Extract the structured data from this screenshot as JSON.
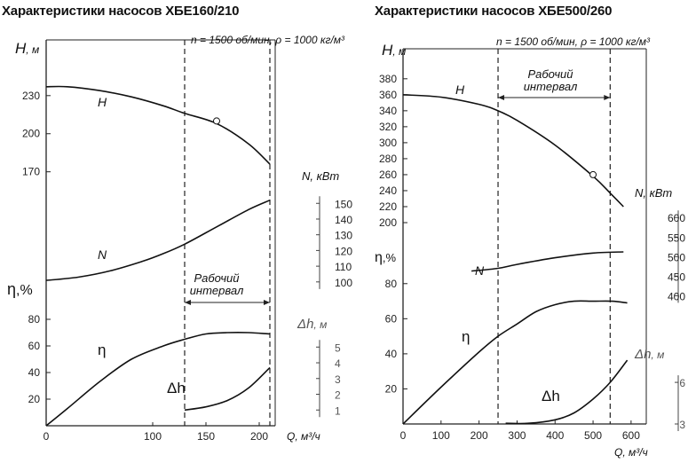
{
  "chart_data": [
    {
      "type": "line",
      "title": "Характеристики насосов ХБЕ160/210",
      "conditions": "n = 1500 об/мин, ρ = 1000 кг/м³",
      "xlabel": "Q, м³/ч",
      "x_ticks": [
        "0",
        "100",
        "150",
        "200"
      ],
      "xlim": [
        0,
        215
      ],
      "axes": {
        "H": {
          "label": "H, м",
          "ticks": [
            "170",
            "200",
            "230"
          ],
          "ylim": [
            160,
            262
          ]
        },
        "N": {
          "label": "N, кВт",
          "ticks": [
            "100",
            "110",
            "120",
            "130",
            "140",
            "150"
          ],
          "ylim": [
            92,
            162
          ]
        },
        "eta": {
          "label": "η,%",
          "ticks": [
            "20",
            "40",
            "60",
            "80"
          ],
          "ylim": [
            0,
            90
          ]
        },
        "dh": {
          "label": "Δh, м",
          "ticks": [
            "1",
            "2",
            "3",
            "4",
            "5"
          ],
          "ylim": [
            0,
            6.2
          ]
        }
      },
      "work_interval": {
        "label_line1": "Рабочий",
        "label_line2": "интервал",
        "q_from": 130,
        "q_to": 210
      },
      "series": [
        {
          "name": "H",
          "axis": "H",
          "x": [
            0,
            20,
            50,
            80,
            110,
            130,
            160,
            190,
            210
          ],
          "y": [
            237,
            237,
            234,
            229,
            222,
            216,
            208,
            192,
            176
          ]
        },
        {
          "name": "N",
          "axis": "N",
          "x": [
            0,
            30,
            60,
            90,
            110,
            130,
            160,
            190,
            210
          ],
          "y": [
            101,
            103,
            107,
            113,
            118,
            124,
            135,
            146,
            152
          ]
        },
        {
          "name": "η",
          "axis": "eta",
          "x": [
            0,
            20,
            50,
            80,
            110,
            130,
            150,
            170,
            190,
            210
          ],
          "y": [
            0,
            13,
            33,
            50,
            60,
            65,
            69,
            70,
            70,
            69
          ]
        },
        {
          "name": "Δh",
          "axis": "dh",
          "x": [
            130,
            150,
            170,
            190,
            210
          ],
          "y": [
            1.0,
            1.2,
            1.6,
            2.4,
            3.7
          ]
        }
      ],
      "marker": {
        "series": "H",
        "x": 160,
        "y": 210
      }
    },
    {
      "type": "line",
      "title": "Характеристики насосов ХБЕ500/260",
      "conditions": "n = 1500 об/мин, ρ = 1000 кг/м³",
      "xlabel": "Q, м³/ч",
      "x_ticks": [
        "0",
        "100",
        "200",
        "300",
        "400",
        "500",
        "600"
      ],
      "xlim": [
        0,
        640
      ],
      "axes": {
        "H": {
          "label": "H, м",
          "ticks": [
            "200",
            "220",
            "240",
            "260",
            "280",
            "300",
            "320",
            "340",
            "360",
            "380"
          ],
          "ylim": [
            190,
            392
          ]
        },
        "N": {
          "label": "N, кВт",
          "ticks": [
            "400",
            "450",
            "500",
            "550",
            "600"
          ],
          "ylim": [
            385,
            630
          ]
        },
        "eta": {
          "label": "η,%",
          "ticks": [
            "20",
            "40",
            "60",
            "80"
          ],
          "ylim": [
            0,
            90
          ]
        },
        "dh": {
          "label": "Δh, м",
          "ticks": [
            "3",
            "6"
          ],
          "ylim": [
            3,
            8.5
          ]
        }
      },
      "work_interval": {
        "label_line1": "Рабочий",
        "label_line2": "интервал",
        "q_from": 250,
        "q_to": 545
      },
      "series": [
        {
          "name": "H",
          "axis": "H",
          "x": [
            0,
            100,
            200,
            250,
            300,
            400,
            500,
            545,
            580
          ],
          "y": [
            360,
            357,
            348,
            340,
            328,
            297,
            258,
            237,
            220
          ]
        },
        {
          "name": "N",
          "axis": "N",
          "x": [
            180,
            250,
            300,
            400,
            500,
            580
          ],
          "y": [
            463,
            470,
            480,
            497,
            509,
            512
          ]
        },
        {
          "name": "η",
          "axis": "eta",
          "x": [
            0,
            100,
            200,
            250,
            300,
            350,
            400,
            450,
            500,
            550,
            590
          ],
          "y": [
            0,
            21,
            41,
            50,
            57,
            64,
            68,
            70,
            70,
            70,
            69
          ]
        },
        {
          "name": "Δh",
          "axis": "dh",
          "x": [
            270,
            330,
            400,
            450,
            500,
            545,
            590
          ],
          "y": [
            3.05,
            3.05,
            3.3,
            3.8,
            4.8,
            6.0,
            7.6
          ]
        }
      ],
      "marker": {
        "series": "H",
        "x": 500,
        "y": 260
      }
    }
  ]
}
